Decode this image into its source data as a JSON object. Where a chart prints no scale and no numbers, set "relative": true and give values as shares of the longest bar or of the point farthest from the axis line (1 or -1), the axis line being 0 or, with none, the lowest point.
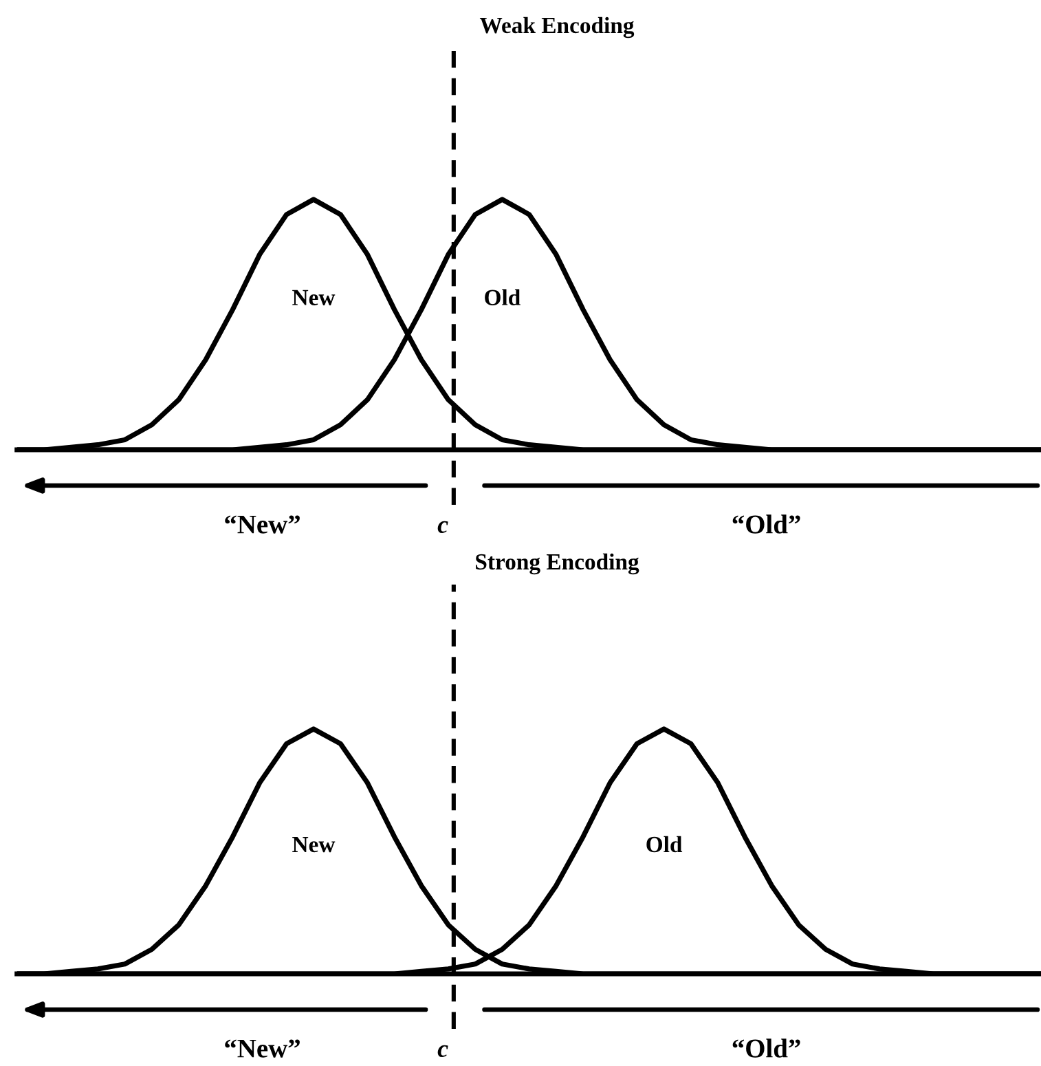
{
  "chart_data": [
    {
      "type": "line",
      "title": "Weak Encoding",
      "relative": true,
      "legend": false,
      "categories": [
        null,
        null,
        null,
        null,
        null,
        null,
        null,
        null,
        null,
        null,
        null,
        null,
        null,
        null,
        null,
        null,
        null,
        null,
        null,
        null,
        null,
        null,
        null,
        null,
        null,
        null,
        null,
        null,
        null,
        null,
        null,
        null,
        null,
        null,
        null,
        null,
        null,
        null,
        null
      ],
      "series": [
        {
          "name": "New",
          "color": "#000000",
          "values": [
            0,
            0,
            0.01,
            0.02,
            0.04,
            0.1,
            0.2,
            0.36,
            0.56,
            0.78,
            0.94,
            1,
            0.94,
            0.78,
            0.56,
            0.36,
            0.2,
            0.1,
            0.04,
            0.02,
            0.01,
            0,
            0,
            0,
            0,
            0,
            0,
            0,
            0,
            0,
            0,
            0,
            0,
            0,
            0,
            0,
            0,
            0,
            0
          ]
        },
        {
          "name": "Old",
          "color": "#000000",
          "values": [
            0,
            0,
            0,
            0,
            0,
            0,
            0,
            0,
            0,
            0.01,
            0.02,
            0.04,
            0.1,
            0.2,
            0.36,
            0.56,
            0.78,
            0.94,
            1,
            0.94,
            0.78,
            0.56,
            0.36,
            0.2,
            0.1,
            0.04,
            0.02,
            0.01,
            0,
            0,
            0,
            0,
            0,
            0,
            0,
            0,
            0,
            0,
            0
          ]
        }
      ],
      "annotations": [
        "“New”",
        "c",
        "“Old”"
      ]
    },
    {
      "type": "line",
      "title": "Strong Encoding",
      "relative": true,
      "legend": false,
      "categories": [
        null,
        null,
        null,
        null,
        null,
        null,
        null,
        null,
        null,
        null,
        null,
        null,
        null,
        null,
        null,
        null,
        null,
        null,
        null,
        null,
        null,
        null,
        null,
        null,
        null,
        null,
        null,
        null,
        null,
        null,
        null,
        null,
        null,
        null,
        null,
        null,
        null,
        null,
        null
      ],
      "series": [
        {
          "name": "New",
          "color": "#000000",
          "values": [
            0,
            0,
            0.01,
            0.02,
            0.04,
            0.1,
            0.2,
            0.36,
            0.56,
            0.78,
            0.94,
            1,
            0.94,
            0.78,
            0.56,
            0.36,
            0.2,
            0.1,
            0.04,
            0.02,
            0.01,
            0,
            0,
            0,
            0,
            0,
            0,
            0,
            0,
            0,
            0,
            0,
            0,
            0,
            0,
            0,
            0,
            0,
            0
          ]
        },
        {
          "name": "Old",
          "color": "#000000",
          "values": [
            0,
            0,
            0,
            0,
            0,
            0,
            0,
            0,
            0,
            0,
            0,
            0,
            0,
            0,
            0,
            0.01,
            0.02,
            0.04,
            0.1,
            0.2,
            0.36,
            0.56,
            0.78,
            0.94,
            1,
            0.94,
            0.78,
            0.56,
            0.36,
            0.2,
            0.1,
            0.04,
            0.02,
            0.01,
            0,
            0,
            0,
            0,
            0
          ]
        }
      ],
      "annotations": [
        "“New”",
        "c",
        "“Old”"
      ]
    }
  ]
}
